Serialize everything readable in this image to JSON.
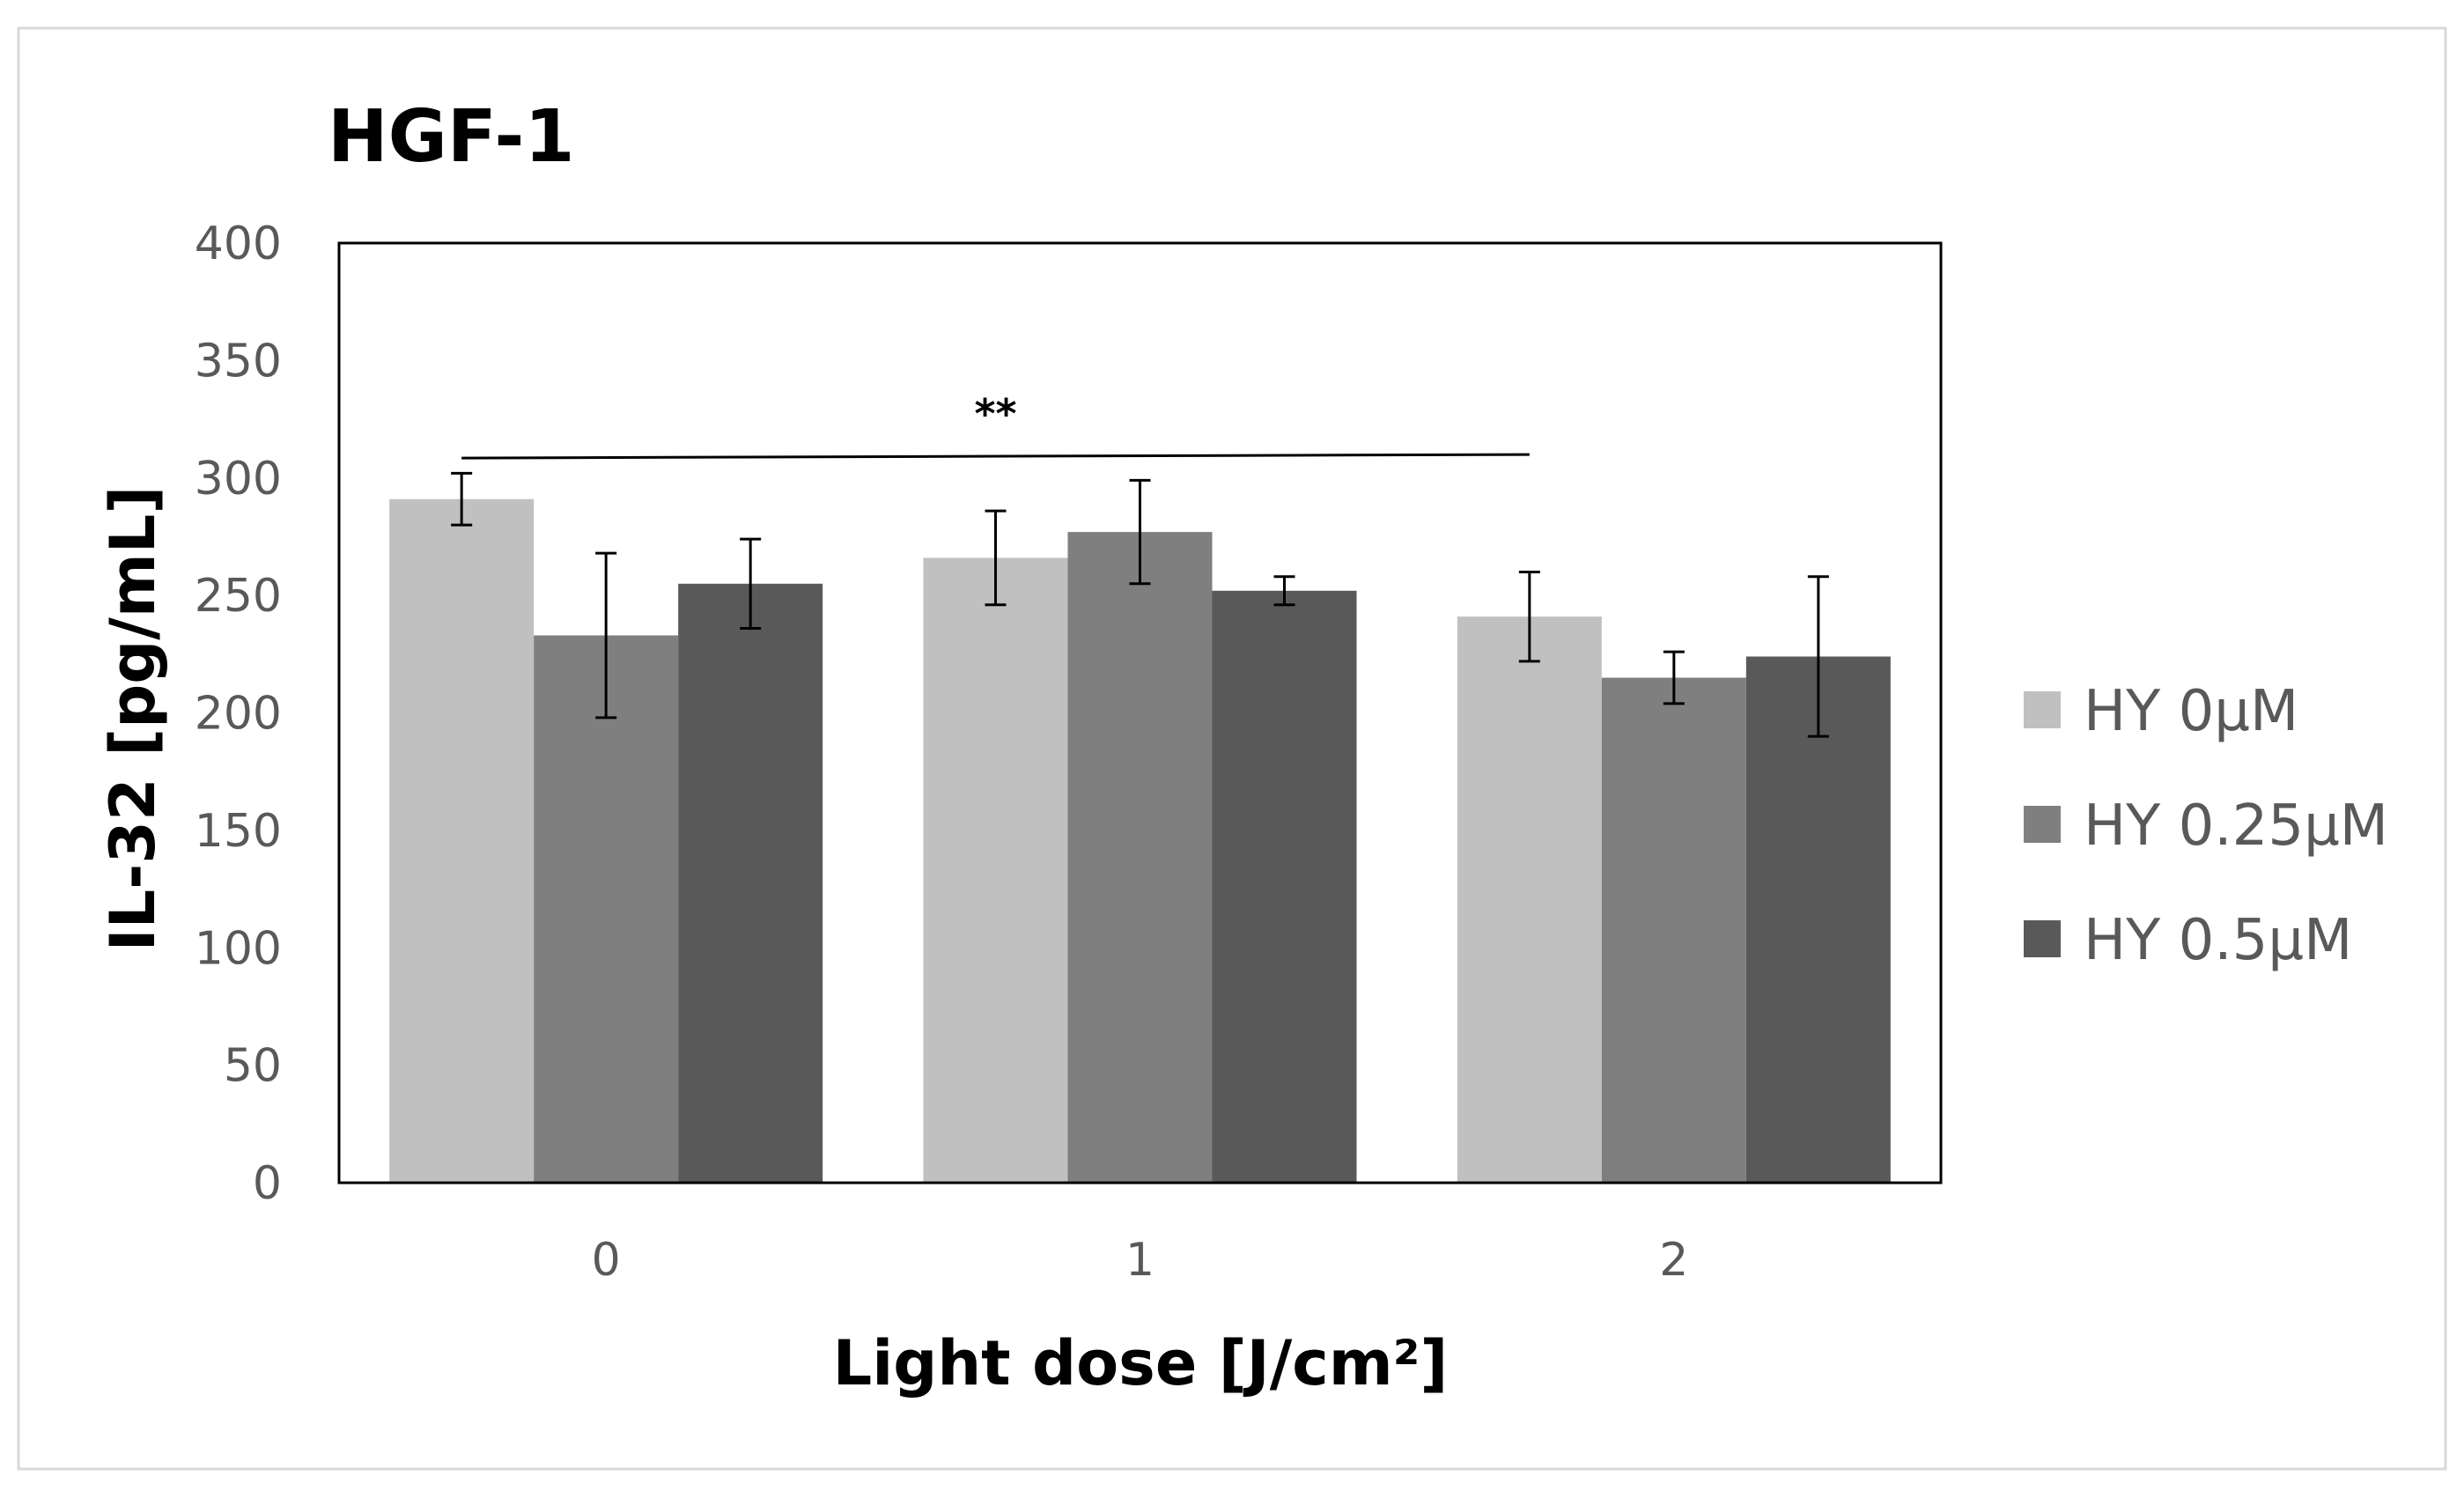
{
  "chart_data": {
    "type": "bar",
    "title": "HGF-1",
    "xlabel": "Light dose  [J/cm²]",
    "ylabel": "IL-32 [pg/mL]",
    "ylim": [
      0,
      400
    ],
    "yticks": [
      0,
      50,
      100,
      150,
      200,
      250,
      300,
      350,
      400
    ],
    "categories": [
      "0",
      "1",
      "2"
    ],
    "series": [
      {
        "name": "HY 0µM",
        "color": "#c0c0c0",
        "values": [
          291,
          266,
          241
        ],
        "errors": [
          11,
          20,
          19
        ]
      },
      {
        "name": "HY 0.25µM",
        "color": "#7f7f7f",
        "values": [
          233,
          277,
          215
        ],
        "errors": [
          35,
          22,
          11
        ]
      },
      {
        "name": "HY 0.5µM",
        "color": "#595959",
        "values": [
          255,
          252,
          224
        ],
        "errors": [
          19,
          6,
          34
        ]
      }
    ],
    "annotations": [
      {
        "text": "**",
        "from_category": "0",
        "to_category": "2",
        "y": 310
      }
    ],
    "grid": false,
    "legend_position": "right"
  }
}
